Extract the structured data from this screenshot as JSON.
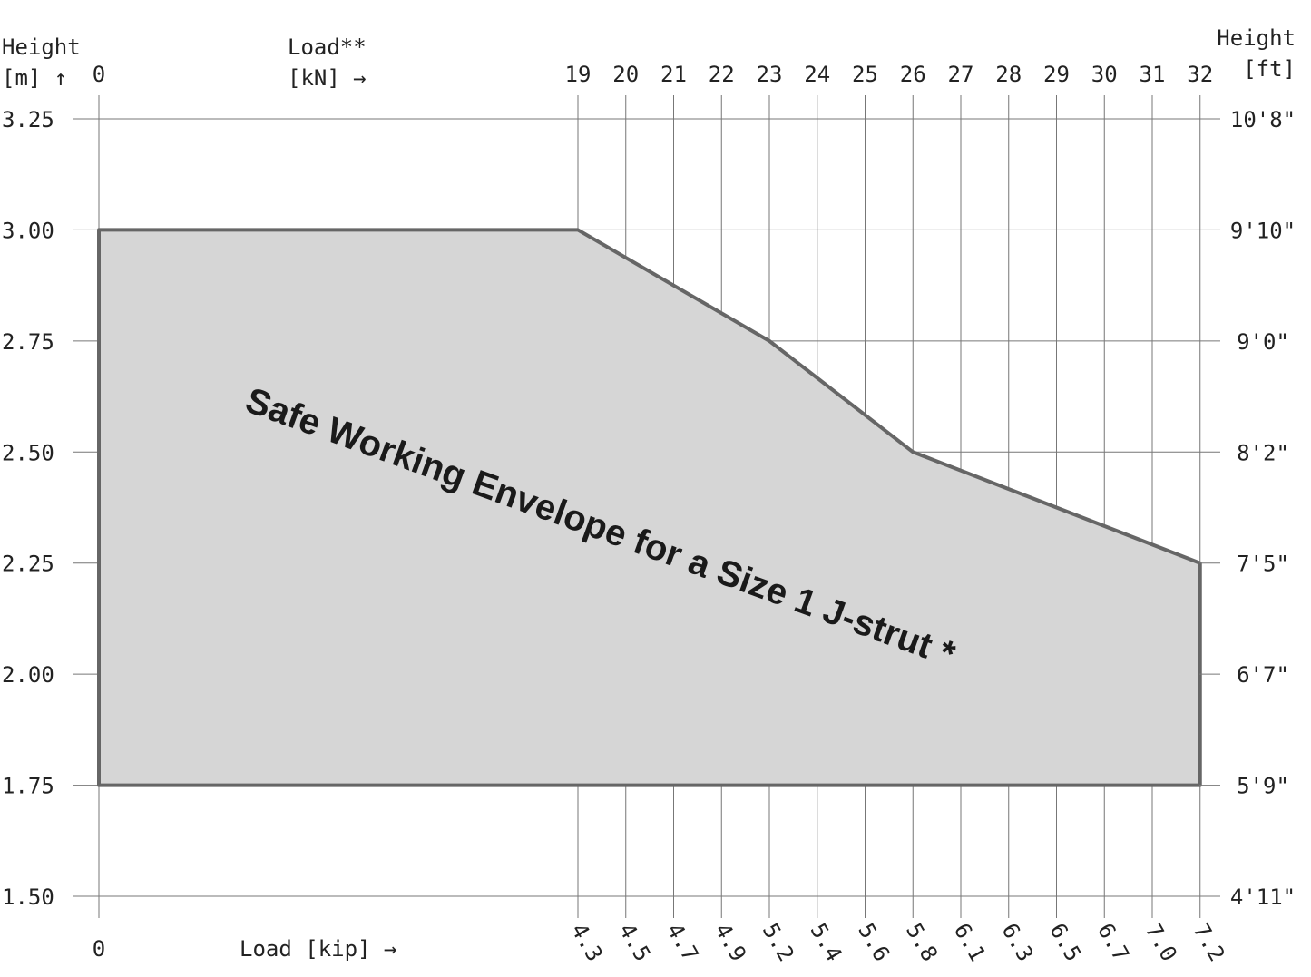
{
  "chart_data": {
    "type": "polygon",
    "y_label": [
      "Height",
      "[m] ↑"
    ],
    "x_label": [
      "Load**",
      "[kN] →"
    ],
    "y2_label": [
      "Height",
      "[ft]"
    ],
    "x2_label": "Load [kip] →",
    "annotation": "Safe Working Envelope for a Size 1 J-strut *",
    "series": [
      {
        "x": [
          0,
          0,
          19,
          23,
          26,
          32,
          32
        ],
        "values": [
          1.75,
          3.0,
          3.0,
          2.75,
          2.5,
          2.25,
          1.75
        ],
        "color": "#666666",
        "fill": "#d6d6d6"
      }
    ],
    "ylim": [
      1.5,
      3.25
    ],
    "yticks": [
      {
        "value": 1.5,
        "label": "1.50"
      },
      {
        "value": 1.75,
        "label": "1.75"
      },
      {
        "value": 2.0,
        "label": "2.00"
      },
      {
        "value": 2.25,
        "label": "2.25"
      },
      {
        "value": 2.5,
        "label": "2.50"
      },
      {
        "value": 2.75,
        "label": "2.75"
      },
      {
        "value": 3.0,
        "label": "3.00"
      },
      {
        "value": 3.25,
        "label": "3.25"
      }
    ],
    "y2lim": [
      4.921,
      10.663
    ],
    "y2ticks": [
      {
        "value": 4.921,
        "label": "4'11\""
      },
      {
        "value": 5.741,
        "label": "5'9\""
      },
      {
        "value": 6.562,
        "label": "6'7\""
      },
      {
        "value": 7.382,
        "label": "7'5\""
      },
      {
        "value": 8.202,
        "label": "8'2\""
      },
      {
        "value": 9.022,
        "label": "9'0\""
      },
      {
        "value": 9.843,
        "label": "9'10\""
      },
      {
        "value": 10.663,
        "label": "10'8\""
      }
    ],
    "xticks": [
      0,
      19,
      20,
      21,
      22,
      23,
      24,
      25,
      26,
      27,
      28,
      29,
      30,
      31,
      32
    ],
    "x2ticks": [
      0,
      4.3,
      4.5,
      4.7,
      4.9,
      5.2,
      5.4,
      5.6,
      5.8,
      6.1,
      6.3,
      6.5,
      6.7,
      {
        "value": 7.0,
        "label": "7.0"
      },
      7.2
    ],
    "grid": true
  }
}
